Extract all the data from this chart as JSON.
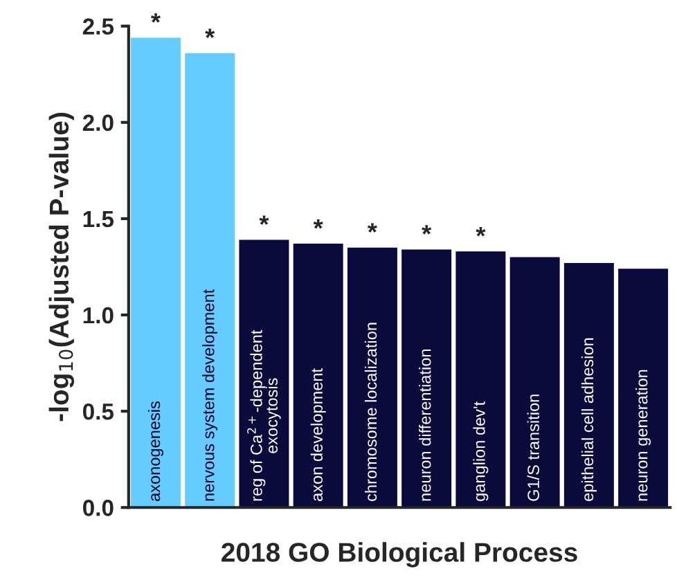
{
  "chart_data": {
    "type": "bar",
    "xlabel": "2018 GO Biological Process",
    "ylabel": "-log$_{10}$(Adjusted P-value)",
    "categories": [
      "axonogenesis",
      "nervous system development",
      "reg of Ca$^{2+}$-dependent\nexocytosis",
      "axon development",
      "chromosome localization",
      "neuron differentiation",
      "ganglion dev't",
      "G1/S transition",
      "epithelial cell adhesion",
      "neuron generation"
    ],
    "values": [
      2.44,
      2.36,
      1.39,
      1.37,
      1.35,
      1.34,
      1.33,
      1.3,
      1.27,
      1.24
    ],
    "colors": [
      "#66ccff",
      "#66ccff",
      "#0b0b3b",
      "#0b0b3b",
      "#0b0b3b",
      "#0b0b3b",
      "#0b0b3b",
      "#0b0b3b",
      "#0b0b3b",
      "#0b0b3b"
    ],
    "value_labels": [
      "*",
      "*",
      "*",
      "*",
      "*",
      "*",
      "*",
      null,
      null,
      null
    ],
    "ylim": [
      0,
      2.5
    ],
    "yticks": [
      {
        "value": 0,
        "label": "0.0"
      },
      {
        "value": 0.5,
        "label": "0.5"
      },
      {
        "value": 1,
        "label": "1.0"
      },
      {
        "value": 1.5,
        "label": "1.5"
      },
      {
        "value": 2,
        "label": "2.0"
      },
      {
        "value": 2.5,
        "label": "2.5"
      }
    ],
    "tick_labels": "y",
    "grid": false
  }
}
